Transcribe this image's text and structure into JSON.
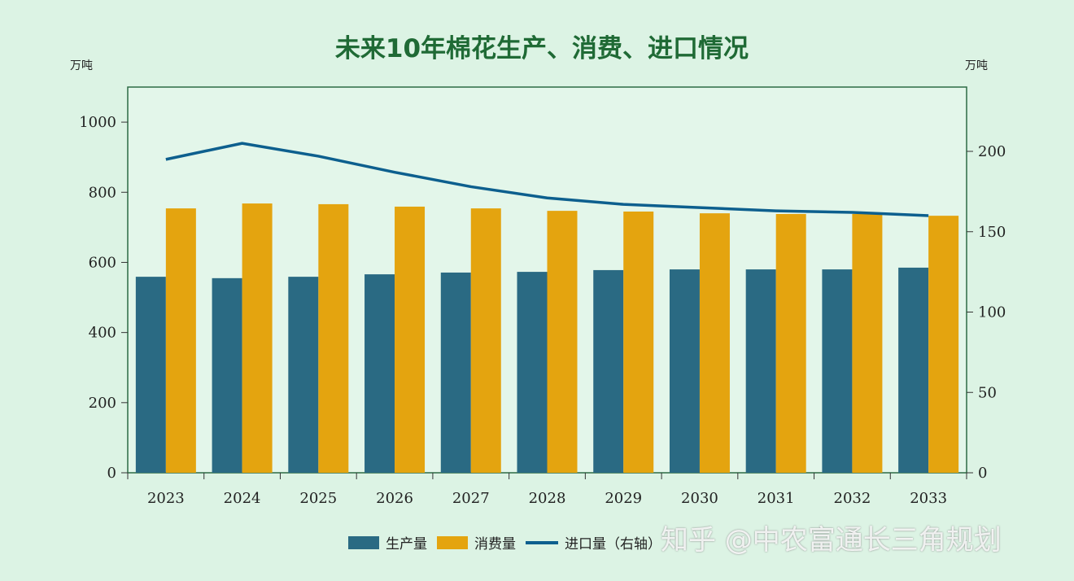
{
  "chart_data": {
    "type": "bar",
    "title": "未来10年棉花生产、消费、进口情况",
    "ylabel": "万吨",
    "ylabel_right": "万吨",
    "categories": [
      "2023",
      "2024",
      "2025",
      "2026",
      "2027",
      "2028",
      "2029",
      "2030",
      "2031",
      "2032",
      "2033"
    ],
    "ylim": [
      0,
      1100
    ],
    "yticks": [
      0,
      200,
      400,
      600,
      800,
      1000
    ],
    "ylim_right": [
      0,
      240
    ],
    "yticks_right": [
      0,
      50,
      100,
      150,
      200
    ],
    "series": [
      {
        "name": "生产量",
        "type": "bar",
        "axis": "left",
        "color": "#2a6a83",
        "values": [
          559,
          555,
          559,
          566,
          571,
          573,
          578,
          580,
          580,
          580,
          585
        ]
      },
      {
        "name": "消费量",
        "type": "bar",
        "axis": "left",
        "color": "#e4a40f",
        "values": [
          754,
          768,
          766,
          759,
          754,
          747,
          745,
          740,
          738,
          738,
          733
        ]
      },
      {
        "name": "进口量（右轴）",
        "type": "line",
        "axis": "right",
        "color": "#0d5f8e",
        "values": [
          195,
          205,
          197,
          187,
          178,
          171,
          167,
          165,
          163,
          162,
          160
        ]
      }
    ],
    "legend": "bottom",
    "grid": false
  },
  "watermark": "知乎 @中农富通长三角规划"
}
